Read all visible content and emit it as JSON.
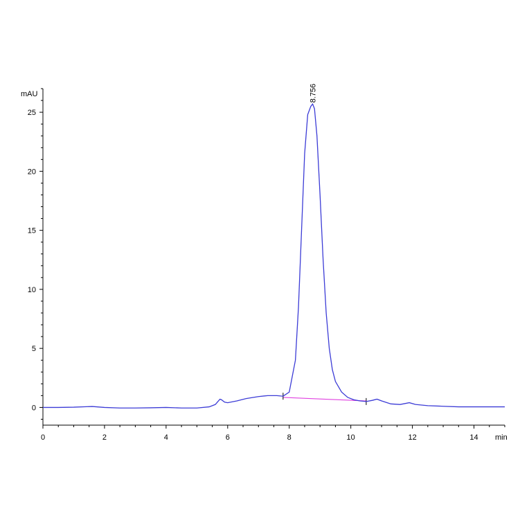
{
  "chart_data": {
    "type": "line",
    "title": "",
    "ylabel": "mAU",
    "xlabel": "min",
    "xlim": [
      0,
      15
    ],
    "ylim": [
      -1.5,
      27
    ],
    "x_ticks": [
      0,
      2,
      4,
      6,
      8,
      10,
      12,
      14
    ],
    "y_ticks": [
      0,
      5,
      10,
      15,
      20,
      25
    ],
    "x_tick_labels": [
      "0",
      "2",
      "4",
      "6",
      "8",
      "10",
      "12",
      "14"
    ],
    "y_tick_labels": [
      "0",
      "5",
      "10",
      "15",
      "20",
      "25"
    ],
    "colors": {
      "trace": "#3b3bd6",
      "baseline": "#e040e0",
      "axes": "#000000"
    },
    "series": [
      {
        "x": [
          0,
          0.5,
          1.0,
          1.6,
          2.0,
          2.5,
          3.0,
          3.5,
          4.0,
          4.5,
          5.0,
          5.4,
          5.6,
          5.7,
          5.75,
          5.8,
          5.9,
          6.0,
          6.3,
          6.6,
          7.0,
          7.3,
          7.6,
          7.8,
          8.0,
          8.2,
          8.3,
          8.4,
          8.5,
          8.6,
          8.7,
          8.76,
          8.82,
          8.9,
          9.0,
          9.1,
          9.2,
          9.3,
          9.4,
          9.5,
          9.7,
          9.9,
          10.1,
          10.3,
          10.5,
          10.7,
          10.85,
          11.0,
          11.3,
          11.6,
          11.9,
          12.1,
          12.5,
          13.0,
          13.5,
          14.0,
          14.5,
          15.0
        ],
        "y": [
          0.0,
          0.0,
          0.02,
          0.08,
          0.0,
          -0.05,
          -0.05,
          -0.03,
          0.0,
          -0.05,
          -0.05,
          0.05,
          0.25,
          0.55,
          0.7,
          0.65,
          0.45,
          0.4,
          0.55,
          0.75,
          0.92,
          1.0,
          1.0,
          0.95,
          1.3,
          4.0,
          8.5,
          15.0,
          21.5,
          24.8,
          25.5,
          25.7,
          25.3,
          23.0,
          18.0,
          12.5,
          8.0,
          5.0,
          3.2,
          2.2,
          1.3,
          0.85,
          0.65,
          0.55,
          0.5,
          0.6,
          0.7,
          0.55,
          0.3,
          0.25,
          0.4,
          0.25,
          0.15,
          0.1,
          0.05,
          0.05,
          0.05,
          0.05
        ]
      }
    ],
    "baseline_segment": {
      "x": [
        7.8,
        10.5
      ],
      "y": [
        0.85,
        0.55
      ]
    },
    "integration_marks_x": [
      7.8,
      10.5
    ],
    "annotations": [
      {
        "label": "8.756",
        "x": 8.756
      }
    ]
  }
}
